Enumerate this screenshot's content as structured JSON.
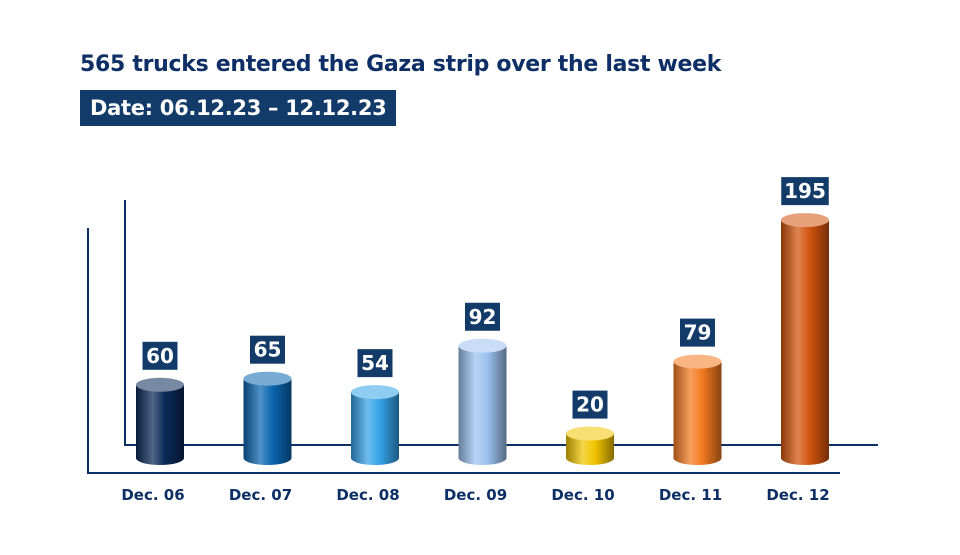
{
  "chart_data": {
    "type": "bar",
    "title": "565 trucks entered the Gaza strip over the last week",
    "subtitle": "Date: 06.12.23 – 12.12.23",
    "categories": [
      "Dec. 06",
      "Dec. 07",
      "Dec. 08",
      "Dec. 09",
      "Dec. 10",
      "Dec. 11",
      "Dec. 12"
    ],
    "values": [
      60,
      65,
      54,
      92,
      20,
      79,
      195
    ],
    "colors": [
      "#0a2a58",
      "#0a66b0",
      "#34a2e8",
      "#9cc2ee",
      "#f2c500",
      "#f47a20",
      "#d2540e"
    ],
    "label_bg": "#123b6a",
    "grid": false,
    "legend": "none"
  }
}
